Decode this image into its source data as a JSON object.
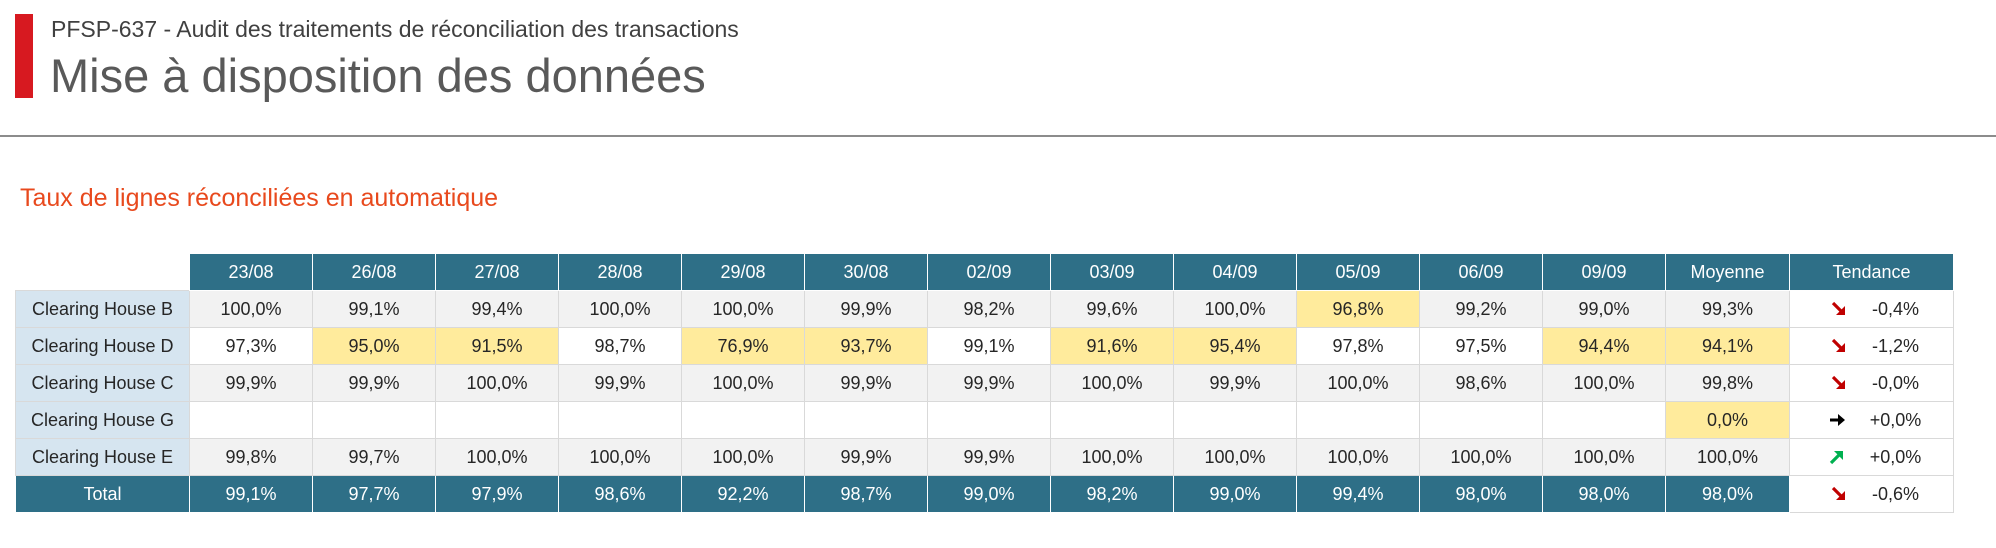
{
  "header": {
    "subtitle": "PFSP-637 - Audit des traitements de réconciliation des transactions",
    "title": "Mise à disposition des données"
  },
  "section": {
    "title": "Taux de lignes réconciliées en automatique"
  },
  "colors": {
    "accent": "#d71920",
    "header_fill": "#2e6f87",
    "highlight": "#ffeb9c",
    "arrow_down": "#c00000",
    "arrow_up": "#00b050",
    "arrow_flat": "#000000"
  },
  "table": {
    "columns": [
      "23/08",
      "26/08",
      "27/08",
      "28/08",
      "29/08",
      "30/08",
      "02/09",
      "03/09",
      "04/09",
      "05/09",
      "06/09",
      "09/09",
      "Moyenne",
      "Tendance"
    ],
    "rows": [
      {
        "label": "Clearing House B",
        "values": [
          "100,0%",
          "99,1%",
          "99,4%",
          "100,0%",
          "100,0%",
          "99,9%",
          "98,2%",
          "99,6%",
          "100,0%",
          "96,8%",
          "99,2%",
          "99,0%",
          "99,3%"
        ],
        "highlight": [
          false,
          false,
          false,
          false,
          false,
          false,
          false,
          false,
          false,
          true,
          false,
          false,
          false
        ],
        "trend_icon": "arrow-down-right-icon",
        "trend": "-0,4%"
      },
      {
        "label": "Clearing House D",
        "values": [
          "97,3%",
          "95,0%",
          "91,5%",
          "98,7%",
          "76,9%",
          "93,7%",
          "99,1%",
          "91,6%",
          "95,4%",
          "97,8%",
          "97,5%",
          "94,4%",
          "94,1%"
        ],
        "highlight": [
          false,
          true,
          true,
          false,
          true,
          true,
          false,
          true,
          true,
          false,
          false,
          true,
          true
        ],
        "trend_icon": "arrow-down-right-icon",
        "trend": "-1,2%"
      },
      {
        "label": "Clearing House C",
        "values": [
          "99,9%",
          "99,9%",
          "100,0%",
          "99,9%",
          "100,0%",
          "99,9%",
          "99,9%",
          "100,0%",
          "99,9%",
          "100,0%",
          "98,6%",
          "100,0%",
          "99,8%"
        ],
        "highlight": [
          false,
          false,
          false,
          false,
          false,
          false,
          false,
          false,
          false,
          false,
          false,
          false,
          false
        ],
        "trend_icon": "arrow-down-right-icon",
        "trend": "-0,0%"
      },
      {
        "label": "Clearing House G",
        "values": [
          "",
          "",
          "",
          "",
          "",
          "",
          "",
          "",
          "",
          "",
          "",
          "",
          "0,0%"
        ],
        "highlight": [
          false,
          false,
          false,
          false,
          false,
          false,
          false,
          false,
          false,
          false,
          false,
          false,
          true
        ],
        "trend_icon": "arrow-right-icon",
        "trend": "+0,0%"
      },
      {
        "label": "Clearing House E",
        "values": [
          "99,8%",
          "99,7%",
          "100,0%",
          "100,0%",
          "100,0%",
          "99,9%",
          "99,9%",
          "100,0%",
          "100,0%",
          "100,0%",
          "100,0%",
          "100,0%",
          "100,0%"
        ],
        "highlight": [
          false,
          false,
          false,
          false,
          false,
          false,
          false,
          false,
          false,
          false,
          false,
          false,
          false
        ],
        "trend_icon": "arrow-up-right-icon",
        "trend": "+0,0%"
      }
    ],
    "total": {
      "label": "Total",
      "values": [
        "99,1%",
        "97,7%",
        "97,9%",
        "98,6%",
        "92,2%",
        "98,7%",
        "99,0%",
        "98,2%",
        "99,0%",
        "99,4%",
        "98,0%",
        "98,0%",
        "98,0%"
      ],
      "trend_icon": "arrow-down-right-icon",
      "trend": "-0,6%"
    }
  }
}
